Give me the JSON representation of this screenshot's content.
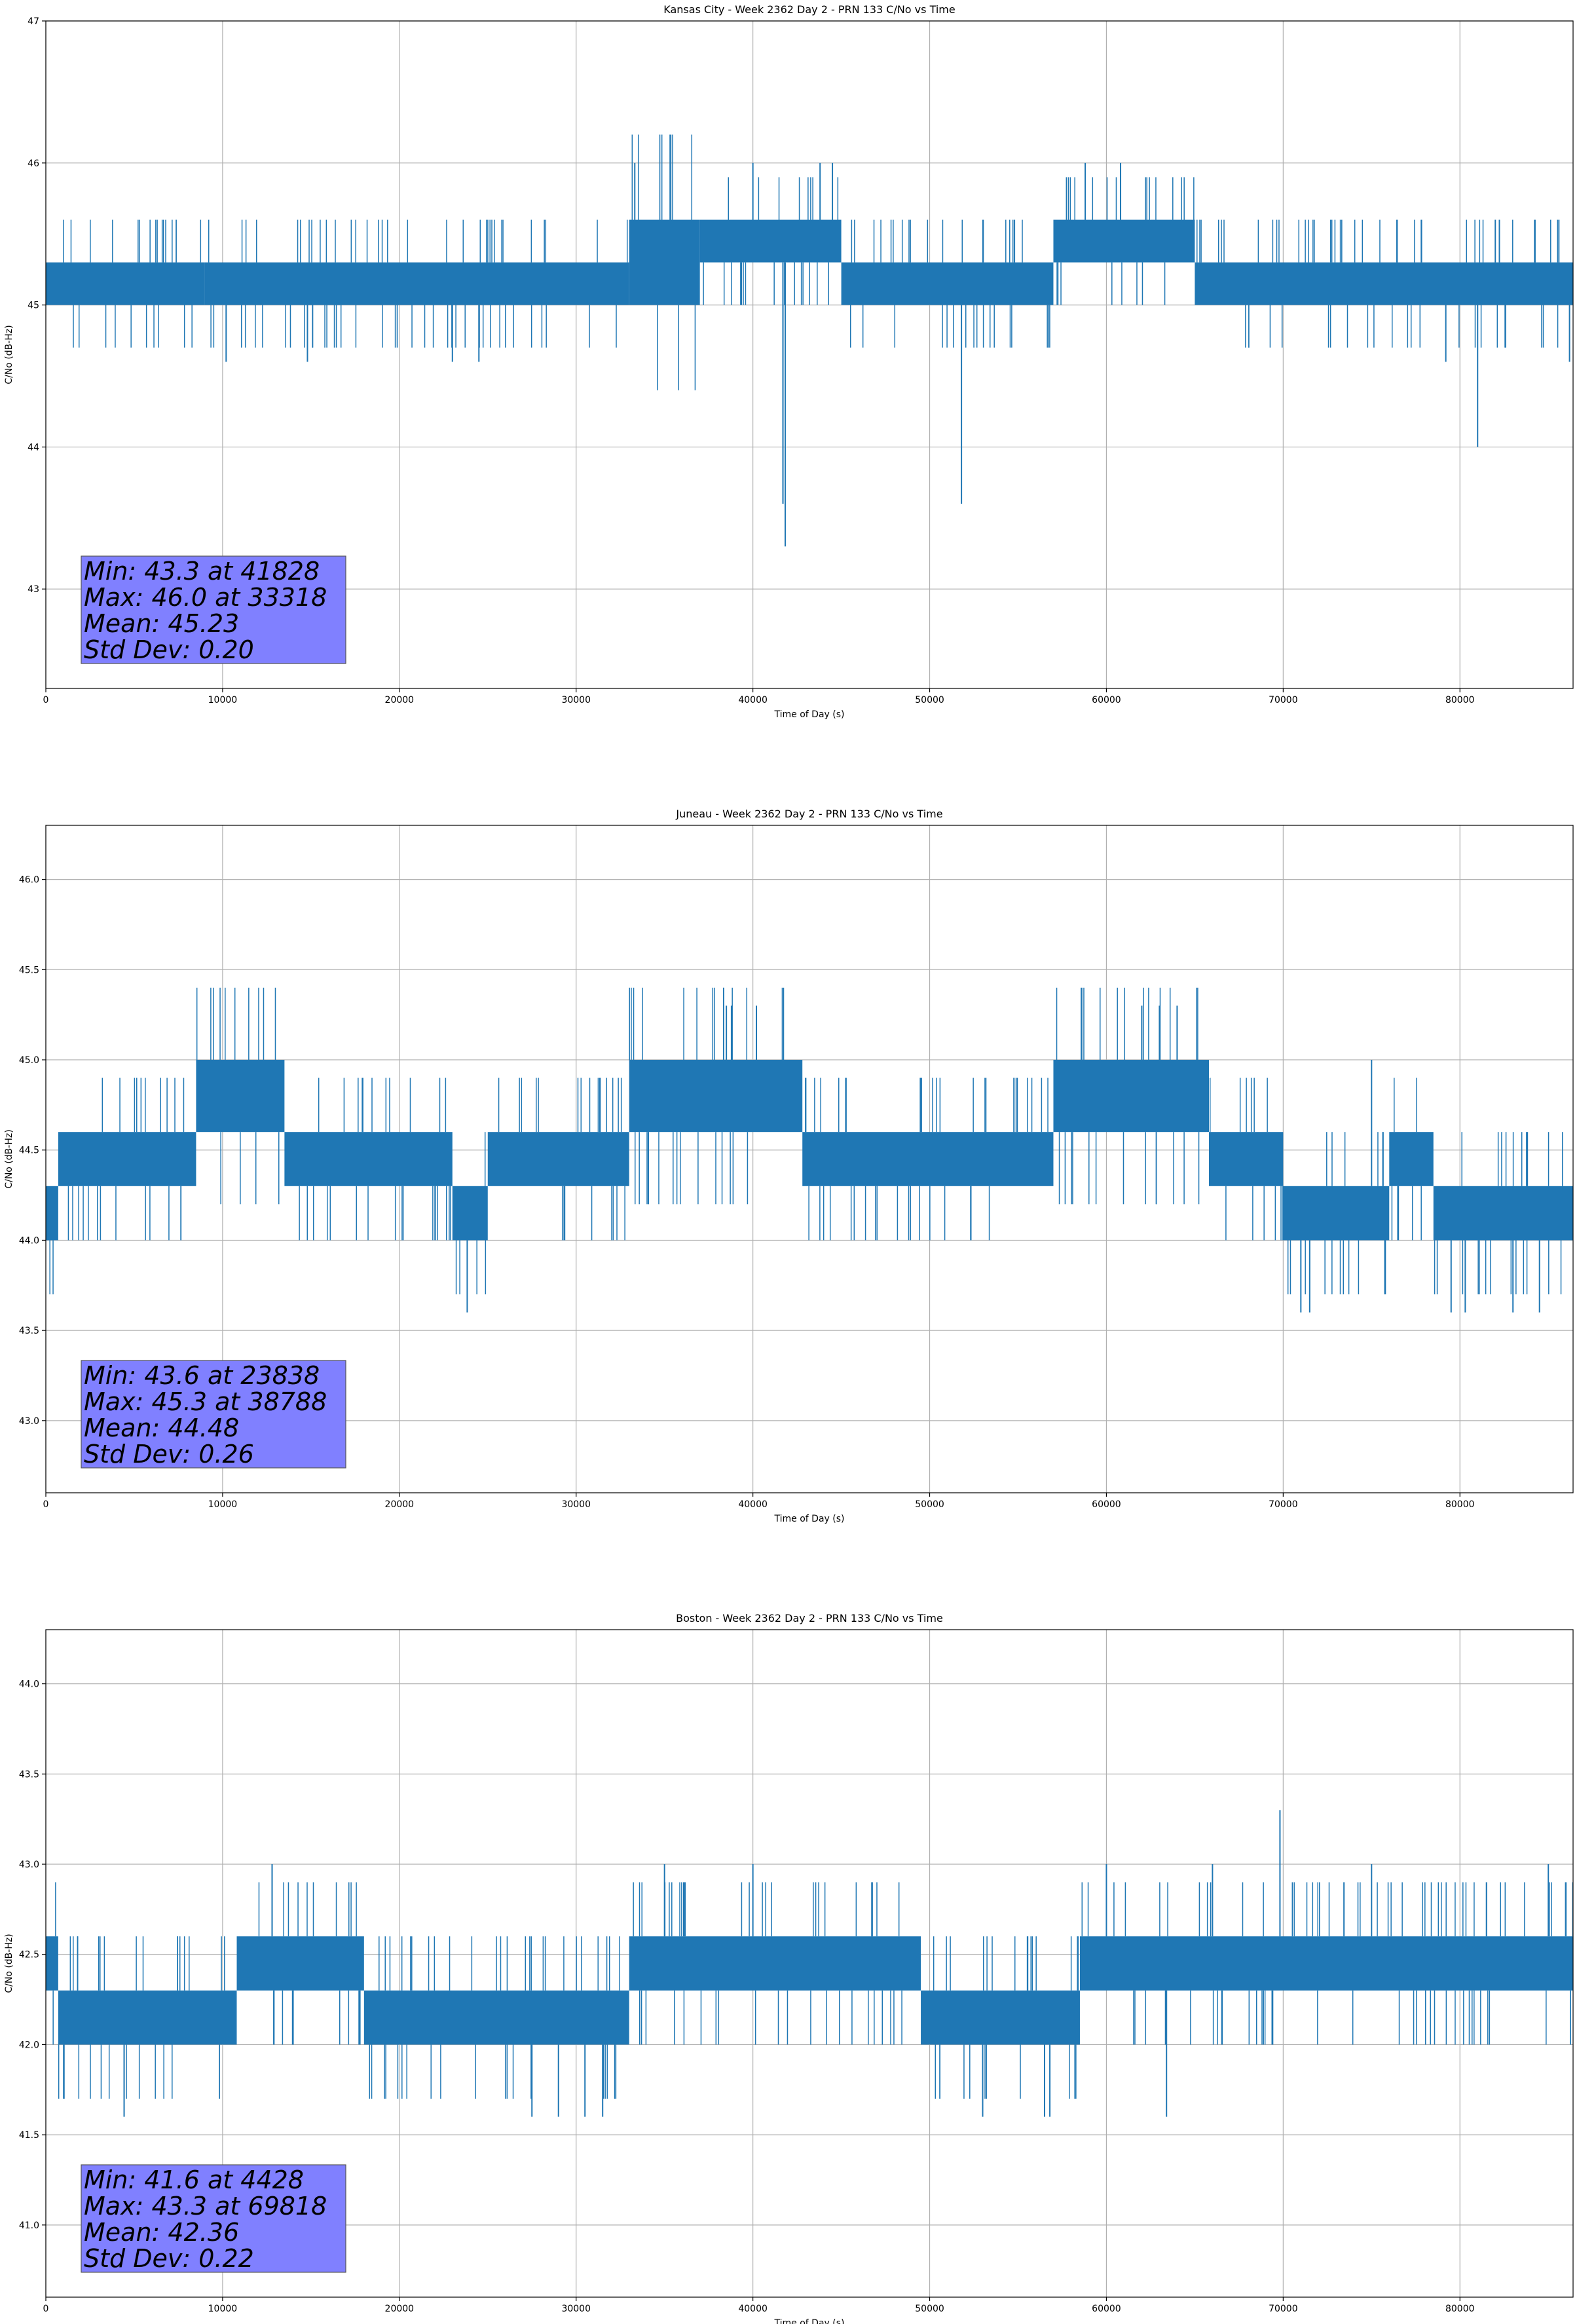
{
  "chart_data": [
    {
      "type": "line",
      "title": "Kansas City - Week 2362 Day 2 - PRN 133 C/No vs Time",
      "xlabel": "Time of Day (s)",
      "ylabel": "C/No (dB-Hz)",
      "xlim": [
        0,
        86400
      ],
      "ylim": [
        42.3,
        47.0
      ],
      "x_ticks": [
        0,
        10000,
        20000,
        30000,
        40000,
        50000,
        60000,
        70000,
        80000
      ],
      "y_ticks": [
        43,
        44,
        45,
        46,
        47
      ],
      "x_tick_labels": [
        "0",
        "10000",
        "20000",
        "30000",
        "40000",
        "50000",
        "60000",
        "70000",
        "80000"
      ],
      "y_tick_labels": [
        "43",
        "44",
        "45",
        "46",
        "47"
      ],
      "grid": true,
      "series_color": "#1f77b4",
      "band_segments": [
        {
          "x0": 0,
          "x1": 9000,
          "lo": 45.0,
          "hi": 45.3
        },
        {
          "x0": 9000,
          "x1": 33000,
          "lo": 45.0,
          "hi": 45.3
        },
        {
          "x0": 33000,
          "x1": 37000,
          "lo": 45.0,
          "hi": 45.6
        },
        {
          "x0": 37000,
          "x1": 45000,
          "lo": 45.3,
          "hi": 45.6
        },
        {
          "x0": 45000,
          "x1": 57000,
          "lo": 45.0,
          "hi": 45.3
        },
        {
          "x0": 57000,
          "x1": 65000,
          "lo": 45.3,
          "hi": 45.6
        },
        {
          "x0": 65000,
          "x1": 86400,
          "lo": 45.0,
          "hi": 45.3
        }
      ],
      "spikes": [
        {
          "x": 41828,
          "y": 43.3
        },
        {
          "x": 41700,
          "y": 43.6
        },
        {
          "x": 51800,
          "y": 43.6
        },
        {
          "x": 81000,
          "y": 44.0
        },
        {
          "x": 10200,
          "y": 44.6
        },
        {
          "x": 14800,
          "y": 44.6
        },
        {
          "x": 33318,
          "y": 46.0
        },
        {
          "x": 40000,
          "y": 46.0
        },
        {
          "x": 43800,
          "y": 46.0
        },
        {
          "x": 44500,
          "y": 46.0
        },
        {
          "x": 58800,
          "y": 46.0
        },
        {
          "x": 60800,
          "y": 46.0
        },
        {
          "x": 79200,
          "y": 44.6
        },
        {
          "x": 86200,
          "y": 44.6
        },
        {
          "x": 54800,
          "y": 45.6
        },
        {
          "x": 82000,
          "y": 45.6
        },
        {
          "x": 23000,
          "y": 44.6
        },
        {
          "x": 24500,
          "y": 44.6
        }
      ],
      "stats": {
        "min": "Min: 43.3 at 41828",
        "max": "Max: 46.0 at 33318",
        "mean": "Mean: 45.23",
        "std": "Std Dev: 0.20"
      }
    },
    {
      "type": "line",
      "title": "Juneau - Week 2362 Day 2 - PRN 133 C/No vs Time",
      "xlabel": "Time of Day (s)",
      "ylabel": "C/No (dB-Hz)",
      "xlim": [
        0,
        86400
      ],
      "ylim": [
        42.6,
        46.3
      ],
      "x_ticks": [
        0,
        10000,
        20000,
        30000,
        40000,
        50000,
        60000,
        70000,
        80000
      ],
      "y_ticks": [
        43.0,
        43.5,
        44.0,
        44.5,
        45.0,
        45.5,
        46.0
      ],
      "x_tick_labels": [
        "0",
        "10000",
        "20000",
        "30000",
        "40000",
        "50000",
        "60000",
        "70000",
        "80000"
      ],
      "y_tick_labels": [
        "43.0",
        "43.5",
        "44.0",
        "44.5",
        "45.0",
        "45.5",
        "46.0"
      ],
      "grid": true,
      "series_color": "#1f77b4",
      "band_segments": [
        {
          "x0": 0,
          "x1": 700,
          "lo": 44.0,
          "hi": 44.3
        },
        {
          "x0": 700,
          "x1": 8500,
          "lo": 44.3,
          "hi": 44.6
        },
        {
          "x0": 8500,
          "x1": 13500,
          "lo": 44.6,
          "hi": 45.0
        },
        {
          "x0": 13500,
          "x1": 23000,
          "lo": 44.3,
          "hi": 44.6
        },
        {
          "x0": 23000,
          "x1": 25000,
          "lo": 44.0,
          "hi": 44.3
        },
        {
          "x0": 25000,
          "x1": 33000,
          "lo": 44.3,
          "hi": 44.6
        },
        {
          "x0": 33000,
          "x1": 42800,
          "lo": 44.6,
          "hi": 45.0
        },
        {
          "x0": 42800,
          "x1": 57000,
          "lo": 44.3,
          "hi": 44.6
        },
        {
          "x0": 57000,
          "x1": 65800,
          "lo": 44.6,
          "hi": 45.0
        },
        {
          "x0": 65800,
          "x1": 70000,
          "lo": 44.3,
          "hi": 44.6
        },
        {
          "x0": 70000,
          "x1": 76000,
          "lo": 44.0,
          "hi": 44.3
        },
        {
          "x0": 76000,
          "x1": 78500,
          "lo": 44.3,
          "hi": 44.6
        },
        {
          "x0": 78500,
          "x1": 86400,
          "lo": 44.0,
          "hi": 44.3
        }
      ],
      "spikes": [
        {
          "x": 23838,
          "y": 43.6
        },
        {
          "x": 38788,
          "y": 45.3
        },
        {
          "x": 38500,
          "y": 45.3
        },
        {
          "x": 40200,
          "y": 45.3
        },
        {
          "x": 62000,
          "y": 45.3
        },
        {
          "x": 63000,
          "y": 45.3
        },
        {
          "x": 64000,
          "y": 45.3
        },
        {
          "x": 71000,
          "y": 43.6
        },
        {
          "x": 71500,
          "y": 43.6
        },
        {
          "x": 79500,
          "y": 43.6
        },
        {
          "x": 80300,
          "y": 43.6
        },
        {
          "x": 83000,
          "y": 43.6
        },
        {
          "x": 84500,
          "y": 43.6
        },
        {
          "x": 75000,
          "y": 45.0
        }
      ],
      "stats": {
        "min": "Min: 43.6 at 23838",
        "max": "Max: 45.3 at 38788",
        "mean": "Mean: 44.48",
        "std": "Std Dev: 0.26"
      }
    },
    {
      "type": "line",
      "title": "Boston - Week 2362 Day 2 - PRN 133 C/No vs Time",
      "xlabel": "Time of Day (s)",
      "ylabel": "C/No (dB-Hz)",
      "xlim": [
        0,
        86400
      ],
      "ylim": [
        40.6,
        44.3
      ],
      "x_ticks": [
        0,
        10000,
        20000,
        30000,
        40000,
        50000,
        60000,
        70000,
        80000
      ],
      "y_ticks": [
        41.0,
        41.5,
        42.0,
        42.5,
        43.0,
        43.5,
        44.0
      ],
      "x_tick_labels": [
        "0",
        "10000",
        "20000",
        "30000",
        "40000",
        "50000",
        "60000",
        "70000",
        "80000"
      ],
      "y_tick_labels": [
        "41.0",
        "41.5",
        "42.0",
        "42.5",
        "43.0",
        "43.5",
        "44.0"
      ],
      "grid": true,
      "series_color": "#1f77b4",
      "band_segments": [
        {
          "x0": 0,
          "x1": 700,
          "lo": 42.3,
          "hi": 42.6
        },
        {
          "x0": 700,
          "x1": 10800,
          "lo": 42.0,
          "hi": 42.3
        },
        {
          "x0": 10800,
          "x1": 18000,
          "lo": 42.3,
          "hi": 42.6
        },
        {
          "x0": 18000,
          "x1": 33000,
          "lo": 42.0,
          "hi": 42.3
        },
        {
          "x0": 33000,
          "x1": 49500,
          "lo": 42.3,
          "hi": 42.6
        },
        {
          "x0": 49500,
          "x1": 58500,
          "lo": 42.0,
          "hi": 42.3
        },
        {
          "x0": 58500,
          "x1": 86400,
          "lo": 42.3,
          "hi": 42.6
        }
      ],
      "spikes": [
        {
          "x": 4428,
          "y": 41.6
        },
        {
          "x": 69818,
          "y": 43.3
        },
        {
          "x": 12800,
          "y": 43.0
        },
        {
          "x": 27500,
          "y": 41.6
        },
        {
          "x": 29000,
          "y": 41.6
        },
        {
          "x": 30500,
          "y": 41.6
        },
        {
          "x": 31500,
          "y": 41.6
        },
        {
          "x": 53000,
          "y": 41.6
        },
        {
          "x": 56500,
          "y": 41.6
        },
        {
          "x": 56800,
          "y": 41.6
        },
        {
          "x": 63400,
          "y": 41.6
        },
        {
          "x": 35000,
          "y": 43.0
        },
        {
          "x": 40000,
          "y": 43.0
        },
        {
          "x": 60000,
          "y": 43.0
        },
        {
          "x": 66000,
          "y": 43.0
        },
        {
          "x": 75000,
          "y": 43.0
        },
        {
          "x": 85000,
          "y": 43.0
        }
      ],
      "stats": {
        "min": "Min: 41.6 at 4428",
        "max": "Max: 43.3 at 69818",
        "mean": "Mean: 42.36",
        "std": "Std Dev: 0.22"
      }
    }
  ]
}
